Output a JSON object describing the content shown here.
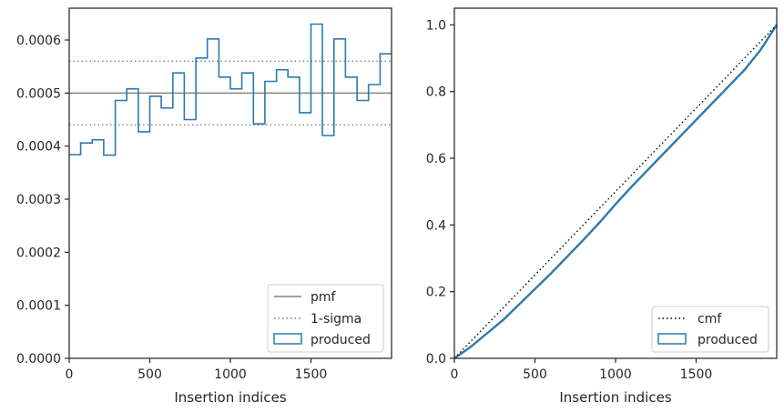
{
  "colors": {
    "produced": "#2a7ab0",
    "pmf": "#808080",
    "sigma": "#808080",
    "cmf": "#000000",
    "axis": "#262626"
  },
  "chart_data": [
    {
      "type": "step",
      "xlabel": "Insertion indices",
      "ylabel": "",
      "xlim": [
        0,
        2000
      ],
      "ylim": [
        0,
        0.00066
      ],
      "xticks": [
        0,
        500,
        1000,
        1500
      ],
      "xtick_labels": [
        "0",
        "500",
        "1000",
        "1500"
      ],
      "yticks": [
        0,
        0.0001,
        0.0002,
        0.0003,
        0.0004,
        0.0005,
        0.0006
      ],
      "ytick_labels": [
        "0.0000",
        "0.0001",
        "0.0002",
        "0.0003",
        "0.0004",
        "0.0005",
        "0.0006"
      ],
      "legend_position": "lower-right",
      "legend": [
        "pmf",
        "1-sigma",
        "produced"
      ],
      "pmf": 0.0005,
      "sigma_band": [
        0.00044,
        0.00056
      ],
      "bin_edges": [
        0,
        71,
        143,
        214,
        286,
        357,
        429,
        500,
        571,
        643,
        714,
        786,
        857,
        929,
        1000,
        1071,
        1143,
        1214,
        1286,
        1357,
        1429,
        1500,
        1571,
        1643,
        1714,
        1786,
        1857,
        1929,
        2000
      ],
      "produced": [
        0.000384,
        0.000406,
        0.000412,
        0.000383,
        0.000486,
        0.000508,
        0.000427,
        0.000494,
        0.000472,
        0.000538,
        0.00045,
        0.000566,
        0.000602,
        0.00053,
        0.000508,
        0.000538,
        0.000442,
        0.000522,
        0.000544,
        0.00053,
        0.000463,
        0.00063,
        0.00042,
        0.000602,
        0.00053,
        0.000486,
        0.000516,
        0.000574
      ]
    },
    {
      "type": "line",
      "xlabel": "Insertion indices",
      "ylabel": "",
      "xlim": [
        0,
        2000
      ],
      "ylim": [
        0,
        1.05
      ],
      "xticks": [
        0,
        500,
        1000,
        1500
      ],
      "xtick_labels": [
        "0",
        "500",
        "1000",
        "1500"
      ],
      "yticks": [
        0,
        0.2,
        0.4,
        0.6,
        0.8,
        1.0
      ],
      "ytick_labels": [
        "0.0",
        "0.2",
        "0.4",
        "0.6",
        "0.8",
        "1.0"
      ],
      "legend_position": "lower-right",
      "legend": [
        "cmf",
        "produced"
      ],
      "cmf": {
        "x": [
          0,
          2000
        ],
        "y": [
          0,
          1.0
        ]
      },
      "produced": {
        "x": [
          0,
          100,
          200,
          300,
          400,
          500,
          600,
          700,
          800,
          900,
          1000,
          1100,
          1200,
          1300,
          1400,
          1500,
          1600,
          1700,
          1800,
          1900,
          2000
        ],
        "y": [
          0,
          0.034,
          0.074,
          0.114,
          0.161,
          0.208,
          0.255,
          0.305,
          0.355,
          0.407,
          0.462,
          0.515,
          0.565,
          0.615,
          0.665,
          0.715,
          0.765,
          0.815,
          0.865,
          0.925,
          1.0
        ]
      }
    }
  ]
}
